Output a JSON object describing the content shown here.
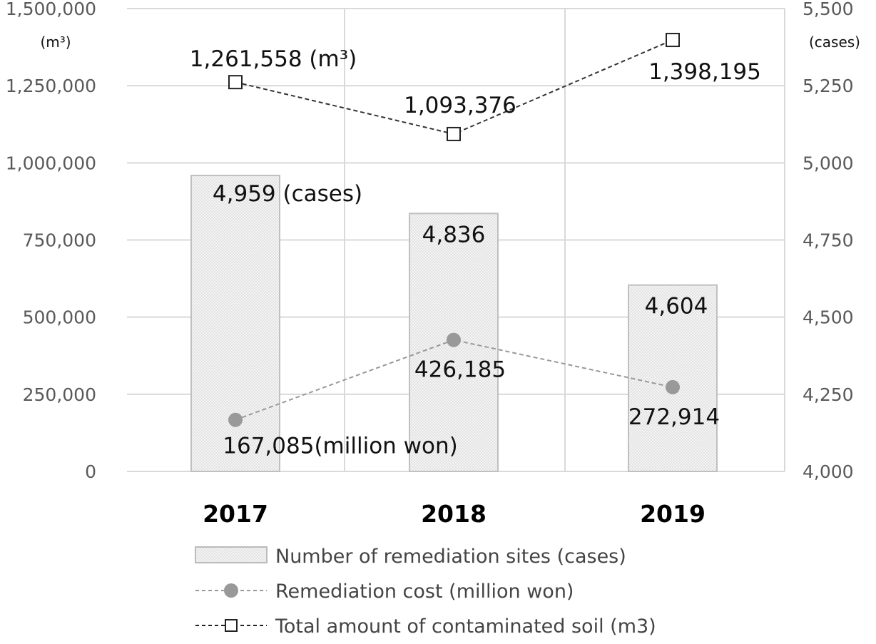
{
  "chart_data": {
    "type": "bar",
    "title": "",
    "categories": [
      "2017",
      "2018",
      "2019"
    ],
    "y_left": {
      "label": "(m³)",
      "range": [
        0,
        1500000
      ],
      "ticks": [
        "0",
        "250,000",
        "500,000",
        "750,000",
        "1,000,000",
        "1,250,000",
        "1,500,000"
      ]
    },
    "y_right": {
      "label": "(cases)",
      "range": [
        4000,
        5500
      ],
      "ticks": [
        "4,000",
        "4,250",
        "4,500",
        "4,750",
        "5,000",
        "5,250",
        "5,500"
      ]
    },
    "series": [
      {
        "name": "Number of remediation sites (cases)",
        "type": "bar",
        "axis": "right",
        "values": [
          4959,
          4836,
          4604
        ],
        "labels": [
          "4,959 (cases)",
          "4,836",
          "4,604"
        ],
        "color": "#e8e8e8"
      },
      {
        "name": "Remediation cost (million won)",
        "type": "line",
        "axis": "left",
        "values": [
          167085,
          426185,
          272914
        ],
        "labels": [
          "167,085(million won)",
          "426,185",
          "272,914"
        ],
        "color": "#999999"
      },
      {
        "name": "Total amount of contaminated soil (m3)",
        "type": "line",
        "axis": "left",
        "values": [
          1261558,
          1093376,
          1398195
        ],
        "labels": [
          "1,261,558 (m³)",
          "1,093,376",
          "1,398,195"
        ],
        "color": "#333333"
      }
    ],
    "grid": true,
    "legend": "bottom"
  }
}
